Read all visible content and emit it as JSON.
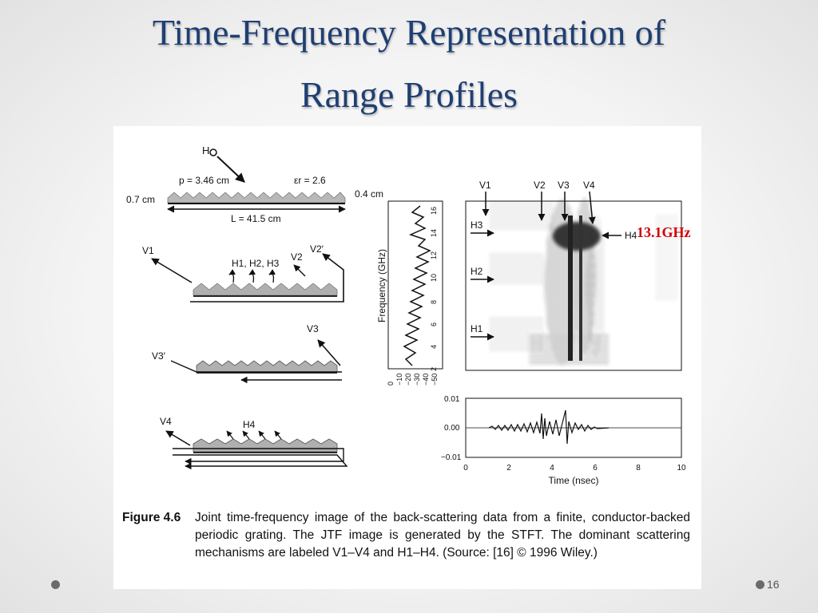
{
  "slide": {
    "title_line1": "Time-Frequency Representation of",
    "title_line2": "Range Profiles",
    "annotation": "13.1GHz",
    "page_number": "16"
  },
  "figure": {
    "grating": {
      "h_label": "H",
      "p_label": "p = 3.46 cm",
      "eps_label": "εr = 2.6",
      "thick_left": "0.7 cm",
      "thick_right": "0.4 cm",
      "length_label": "L = 41.5 cm"
    },
    "mechanisms": {
      "v1": "V1",
      "h123": "H1, H2, H3",
      "v2": "V2",
      "v2p": "V2′",
      "v3": "V3",
      "v3p": "V3′",
      "v4": "V4",
      "h4": "H4"
    },
    "spectrum": {
      "ylabel": "Frequency (GHz)",
      "yticks": [
        "2",
        "4",
        "6",
        "8",
        "10",
        "12",
        "14",
        "16"
      ],
      "xticks": [
        "0",
        "−10",
        "−20",
        "−30",
        "−40",
        "−50"
      ]
    },
    "jtf": {
      "top_labels": [
        "V1",
        "V2",
        "V3",
        "V4"
      ],
      "side_labels": [
        "H3",
        "H2",
        "H1"
      ],
      "h4_label": "H4"
    },
    "time_plot": {
      "yticks": [
        "0.01",
        "0.00",
        "−0.01"
      ],
      "xticks": [
        "0",
        "2",
        "4",
        "6",
        "8",
        "10"
      ],
      "xlabel": "Time (nsec)"
    },
    "caption_label": "Figure 4.6",
    "caption_text": "Joint time-frequency image of the back-scattering data from a finite, conductor-backed periodic grating. The JTF image is generated by the STFT. The dominant scattering mechanisms are labeled V1–V4 and H1–H4. (Source: [16] © 1996 Wiley.)"
  }
}
